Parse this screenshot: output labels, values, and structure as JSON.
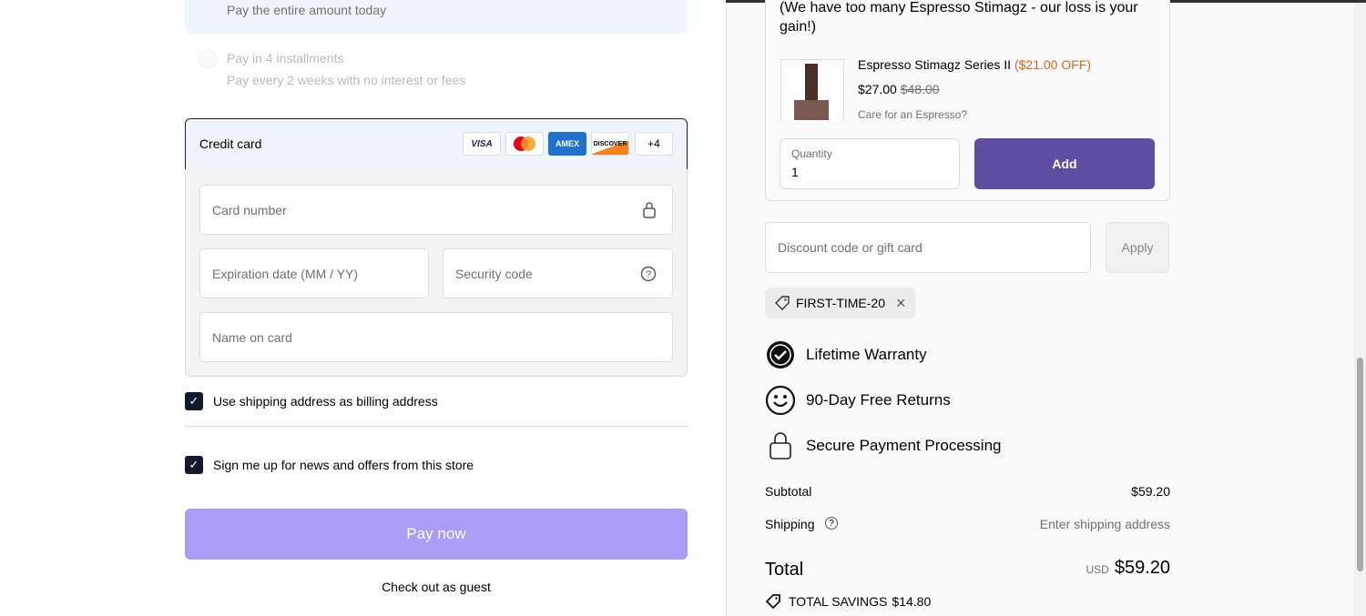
{
  "payment": {
    "full_sub": "Pay the entire amount today",
    "installments_title": "Pay in 4 installments",
    "installments_sub": "Pay every 2 weeks with no interest or fees",
    "credit_card_label": "Credit card",
    "brands": [
      "VISA",
      "MC",
      "AMEX",
      "DISCOVER"
    ],
    "more_brands": "+4",
    "card_number": "Card number",
    "expiration": "Expiration date (MM / YY)",
    "security": "Security code",
    "name": "Name on card",
    "billing_same": "Use shipping address as billing address",
    "newsletter": "Sign me up for news and offers from this store",
    "pay_now": "Pay now",
    "guest": "Check out as guest"
  },
  "upsell": {
    "message": "(We have too many Espresso Stimagz - our loss is your gain!)",
    "product": "Espresso Stimagz Series II",
    "discount": "($21.00 OFF)",
    "price": "$27.00",
    "old_price": "$48.00",
    "tagline": "Care for an Espresso?",
    "quantity_label": "Quantity",
    "quantity": "1",
    "add": "Add"
  },
  "discount": {
    "placeholder": "Discount code or gift card",
    "apply": "Apply",
    "code": "FIRST-TIME-20"
  },
  "features": [
    "Lifetime Warranty",
    "90-Day Free Returns",
    "Secure Payment Processing"
  ],
  "summary": {
    "subtotal_label": "Subtotal",
    "subtotal": "$59.20",
    "shipping_label": "Shipping",
    "shipping": "Enter shipping address",
    "total_label": "Total",
    "currency": "USD",
    "total": "$59.20",
    "savings_label": "TOTAL SAVINGS",
    "savings": "$14.80"
  },
  "colors": {
    "accent": "#5e4ea3",
    "pay_disabled": "#ab9cf5",
    "discount": "#e0621c"
  }
}
